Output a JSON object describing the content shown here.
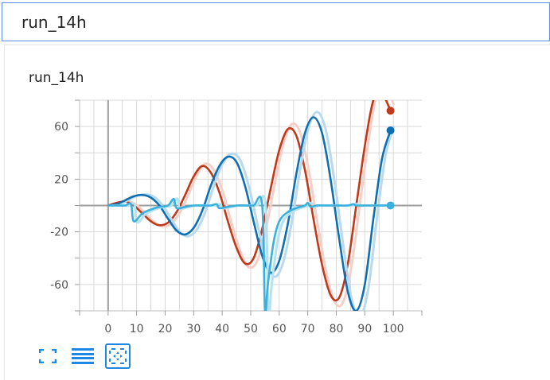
{
  "search": {
    "value": "run_14h"
  },
  "card": {
    "title": "run_14h"
  },
  "toolbar": {
    "buttons": [
      {
        "icon": "fullscreen-icon"
      },
      {
        "icon": "data-table-icon"
      },
      {
        "icon": "fit-domain-icon"
      }
    ]
  },
  "colors": {
    "series_red": "#c0391a",
    "series_red_raw": "#f6cfc6",
    "series_blue": "#0f6fb0",
    "series_blue_raw": "#b8d9ef",
    "series_cyan": "#3cb0dc",
    "series_cyan_raw": "#b4e2f2",
    "toolbar_icon": "#1e88e5"
  },
  "chart_data": {
    "type": "line",
    "title": "run_14h",
    "xlabel": "",
    "ylabel": "",
    "xlim": [
      -10,
      110
    ],
    "ylim": [
      -80,
      80
    ],
    "x_ticks": [
      0,
      10,
      20,
      30,
      40,
      50,
      60,
      70,
      80,
      90,
      100
    ],
    "y_ticks": [
      60,
      20,
      -20,
      -60
    ],
    "grid": true,
    "series": [
      {
        "color": "#c0391a",
        "raw_color": "#f6cfc6",
        "x": [
          0,
          3,
          6,
          9,
          12,
          15,
          18,
          21,
          24,
          27,
          30,
          33,
          36,
          39,
          42,
          45,
          48,
          51,
          54,
          57,
          60,
          63,
          66,
          69,
          72,
          75,
          78,
          81,
          84,
          87,
          90,
          93,
          96,
          99
        ],
        "values": [
          0,
          2,
          3,
          0,
          -6,
          -12,
          -15,
          -13,
          -5,
          8,
          22,
          30,
          25,
          10,
          -12,
          -32,
          -44,
          -40,
          -18,
          13,
          42,
          58,
          53,
          27,
          -10,
          -45,
          -68,
          -70,
          -45,
          0,
          45,
          80,
          85,
          72
        ]
      },
      {
        "color": "#0f6fb0",
        "raw_color": "#b8d9ef",
        "x": [
          0,
          3,
          6,
          9,
          12,
          15,
          18,
          21,
          24,
          27,
          30,
          33,
          36,
          39,
          42,
          45,
          48,
          51,
          54,
          57,
          60,
          63,
          66,
          69,
          72,
          75,
          78,
          81,
          84,
          87,
          90,
          93,
          96,
          99
        ],
        "values": [
          0,
          1,
          4,
          7,
          8,
          6,
          0,
          -10,
          -19,
          -22,
          -17,
          -4,
          15,
          30,
          37,
          33,
          15,
          -12,
          -38,
          -51,
          -42,
          -14,
          24,
          55,
          67,
          55,
          20,
          -25,
          -65,
          -80,
          -60,
          -10,
          35,
          57
        ]
      },
      {
        "color": "#3cb0dc",
        "raw_color": "#b4e2f2",
        "x": [
          0,
          3,
          6,
          8,
          9,
          12,
          15,
          18,
          21,
          23,
          24,
          27,
          30,
          33,
          36,
          38,
          39,
          42,
          45,
          48,
          51,
          54,
          55,
          56,
          58,
          60,
          63,
          66,
          69,
          70,
          71,
          73,
          76,
          80,
          84,
          86,
          87,
          90,
          95,
          99
        ],
        "values": [
          0,
          0,
          0,
          1,
          -12,
          -6,
          -3,
          -1,
          0,
          5,
          -2,
          -1,
          0,
          0,
          0,
          1,
          -2,
          -1,
          0,
          0,
          0,
          1,
          -80,
          -60,
          -28,
          -12,
          -5,
          -2,
          0,
          2,
          -1,
          0,
          0,
          0,
          0,
          1,
          0,
          0,
          0,
          0
        ]
      }
    ]
  }
}
